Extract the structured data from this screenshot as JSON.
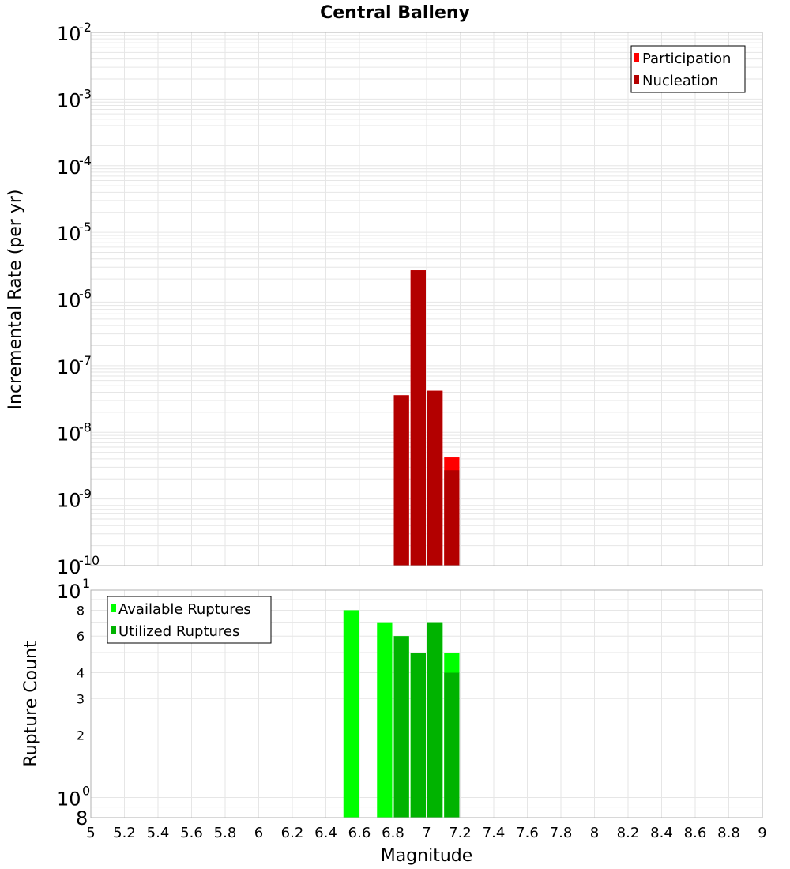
{
  "chart_data": [
    {
      "type": "bar",
      "title": "Central Balleny",
      "xlabel": "",
      "ylabel": "Incremental Rate (per yr)",
      "xlim": [
        5,
        9
      ],
      "ylim": [
        1e-10,
        0.01
      ],
      "yscale": "log",
      "grid": true,
      "legend_position": "top-right",
      "bin_width": 0.1,
      "series": [
        {
          "name": "Participation",
          "color": "#ff0000",
          "x": [
            6.85,
            6.95,
            7.05,
            7.15
          ],
          "values": [
            3.6e-08,
            2.7e-06,
            4.2e-08,
            4.2e-09
          ]
        },
        {
          "name": "Nucleation",
          "color": "#b30000",
          "x": [
            6.85,
            6.95,
            7.05,
            7.15
          ],
          "values": [
            3.6e-08,
            2.7e-06,
            4.2e-08,
            2.7e-09
          ]
        }
      ]
    },
    {
      "type": "bar",
      "title": "",
      "xlabel": "Magnitude",
      "ylabel": "Rupture Count",
      "xlim": [
        5,
        9
      ],
      "ylim": [
        0.8,
        10
      ],
      "yscale": "log",
      "grid": true,
      "legend_position": "top-left",
      "bin_width": 0.1,
      "series": [
        {
          "name": "Available Ruptures",
          "color": "#00ff00",
          "x": [
            6.55,
            6.75,
            6.85,
            6.95,
            7.05,
            7.15
          ],
          "values": [
            8,
            7,
            6,
            5,
            7,
            5
          ]
        },
        {
          "name": "Utilized Ruptures",
          "color": "#00b300",
          "x": [
            6.85,
            6.95,
            7.05,
            7.15
          ],
          "values": [
            6,
            5,
            7,
            4
          ]
        }
      ]
    }
  ],
  "top_axis": {
    "ytick_base": "10",
    "ytick_exponents": [
      "-2",
      "-3",
      "-4",
      "-5",
      "-6",
      "-7",
      "-8",
      "-9",
      "-10"
    ]
  },
  "bottom_axis": {
    "ytick_major_base": "10",
    "ytick_major_top_exp": "1",
    "ytick_major_bottom_exp": "0",
    "ytick_minor_labels": [
      "8",
      "6",
      "4",
      "3",
      "2"
    ],
    "ytick_bottom_label": "8",
    "xtick_labels": [
      "5",
      "5.2",
      "5.4",
      "5.6",
      "5.8",
      "6",
      "6.2",
      "6.4",
      "6.6",
      "6.8",
      "7",
      "7.2",
      "7.4",
      "7.6",
      "7.8",
      "8",
      "8.2",
      "8.4",
      "8.6",
      "8.8",
      "9"
    ]
  },
  "colors": {
    "grid": "#e6e6e6",
    "frame": "#b0b0b0"
  }
}
